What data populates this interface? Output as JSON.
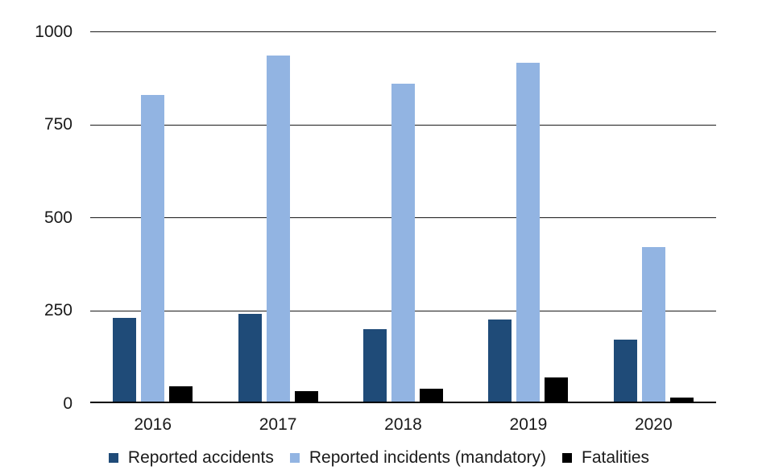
{
  "chart_data": {
    "type": "bar",
    "title": "",
    "xlabel": "",
    "ylabel": "",
    "categories": [
      "2016",
      "2017",
      "2018",
      "2019",
      "2020"
    ],
    "series": [
      {
        "name": "Reported accidents",
        "color": "#1f4b78",
        "values": [
          230,
          240,
          200,
          225,
          170
        ]
      },
      {
        "name": "Reported incidents (mandatory)",
        "color": "#92b4e2",
        "values": [
          830,
          935,
          860,
          915,
          420
        ]
      },
      {
        "name": "Fatalities",
        "color": "#000000",
        "values": [
          45,
          32,
          38,
          70,
          15
        ]
      }
    ],
    "ylim": [
      0,
      1000
    ],
    "yticks": [
      0,
      250,
      500,
      750,
      1000
    ],
    "grid": true,
    "gridline_color": "#1a1a1a",
    "axis_line_color": "#000000",
    "background_color": "#ffffff",
    "legend_position": "bottom"
  }
}
